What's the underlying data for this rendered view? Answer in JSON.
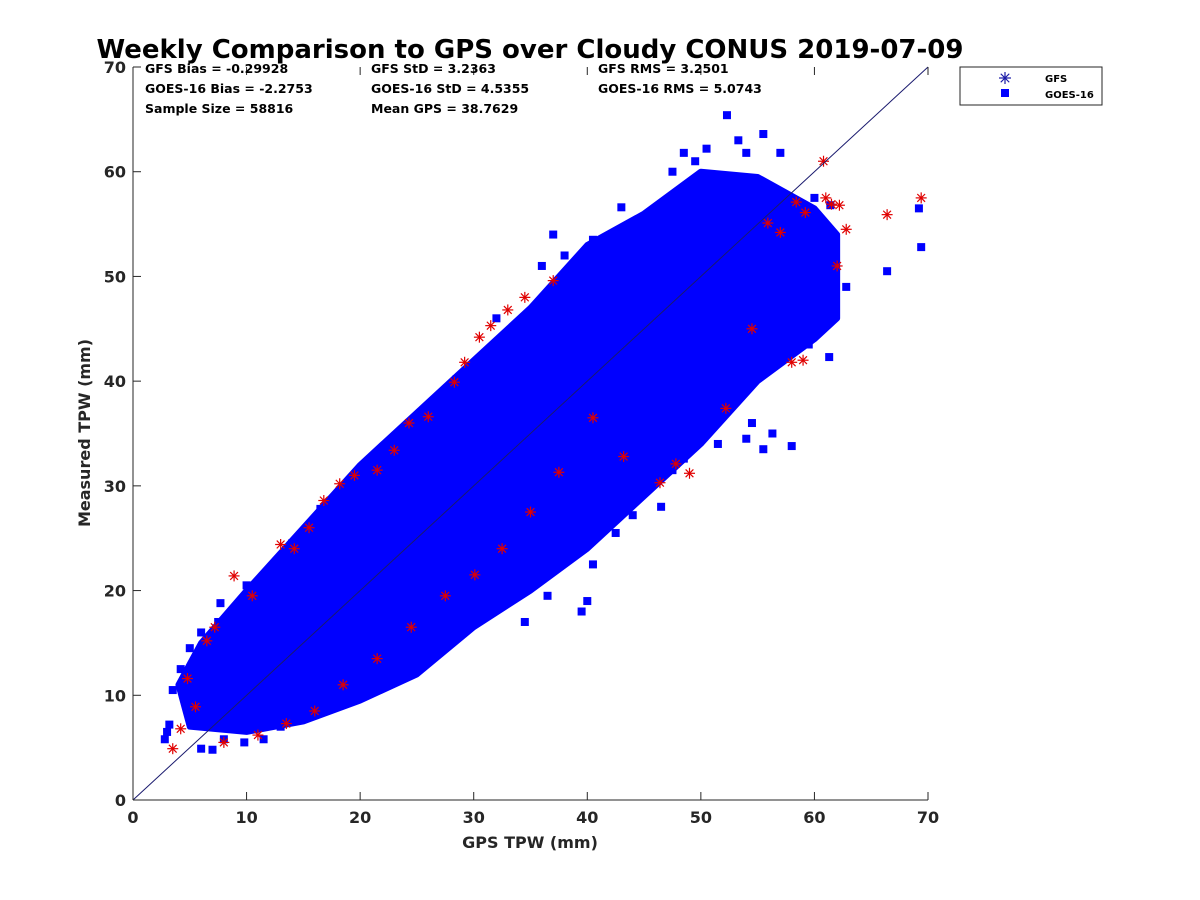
{
  "chart_data": {
    "type": "scatter",
    "title": "Weekly Comparison to GPS over Cloudy CONUS 2019-07-09",
    "xlabel": "GPS TPW (mm)",
    "ylabel": "Measured TPW (mm)",
    "xlim": [
      0,
      70
    ],
    "ylim": [
      0,
      70
    ],
    "xticks": [
      "0",
      "10",
      "20",
      "30",
      "40",
      "50",
      "60",
      "70"
    ],
    "yticks": [
      "0",
      "10",
      "20",
      "30",
      "40",
      "50",
      "60",
      "70"
    ],
    "grid": false,
    "legend_position": "outside-top-right",
    "reference_line": "1:1",
    "stats": {
      "gfs_bias": "GFS Bias = -0.29928",
      "gfs_std": "GFS StD = 3.2363",
      "gfs_rms": "GFS RMS = 3.2501",
      "goes_bias": "GOES-16 Bias = -2.2753",
      "goes_std": "GOES-16 StD = 4.5355",
      "goes_rms": "GOES-16 RMS = 5.0743",
      "sample_size": "Sample Size = 58816",
      "mean_gps": "Mean GPS = 38.7629"
    },
    "series": [
      {
        "name": "GFS",
        "marker": "asterisk",
        "color": "#e00000",
        "legend_color": "#1a1aa6",
        "points": [
          [
            3.5,
            4.9
          ],
          [
            4.2,
            6.8
          ],
          [
            4.8,
            11.6
          ],
          [
            5.5,
            8.9
          ],
          [
            6.5,
            15.2
          ],
          [
            7.2,
            16.5
          ],
          [
            8.9,
            21.4
          ],
          [
            10.5,
            19.5
          ],
          [
            13.0,
            24.4
          ],
          [
            14.2,
            24.0
          ],
          [
            15.5,
            26.0
          ],
          [
            16.8,
            28.6
          ],
          [
            18.2,
            30.2
          ],
          [
            19.5,
            31.0
          ],
          [
            21.5,
            31.5
          ],
          [
            23.0,
            33.4
          ],
          [
            24.3,
            36.0
          ],
          [
            26.0,
            36.6
          ],
          [
            28.3,
            39.9
          ],
          [
            29.2,
            41.8
          ],
          [
            30.5,
            44.2
          ],
          [
            31.5,
            45.3
          ],
          [
            33.0,
            46.8
          ],
          [
            34.5,
            48.0
          ],
          [
            37.0,
            49.6
          ],
          [
            55.9,
            55.1
          ],
          [
            57.0,
            54.2
          ],
          [
            58.4,
            57.1
          ],
          [
            59.2,
            56.1
          ],
          [
            60.8,
            61.0
          ],
          [
            61.0,
            57.5
          ],
          [
            61.5,
            56.9
          ],
          [
            62.2,
            56.8
          ],
          [
            62.0,
            51.0
          ],
          [
            62.8,
            54.5
          ],
          [
            66.4,
            55.9
          ],
          [
            69.4,
            57.5
          ],
          [
            59.0,
            42.0
          ],
          [
            58.0,
            41.8
          ],
          [
            54.5,
            45.0
          ],
          [
            52.2,
            37.4
          ],
          [
            49.0,
            31.2
          ],
          [
            47.8,
            32.1
          ],
          [
            46.4,
            30.3
          ],
          [
            43.2,
            32.8
          ],
          [
            40.5,
            36.5
          ],
          [
            37.5,
            31.3
          ],
          [
            35.0,
            27.5
          ],
          [
            32.5,
            24.0
          ],
          [
            30.1,
            21.5
          ],
          [
            27.5,
            19.5
          ],
          [
            24.5,
            16.5
          ],
          [
            21.5,
            13.5
          ],
          [
            18.5,
            11.0
          ],
          [
            16.0,
            8.5
          ],
          [
            13.5,
            7.3
          ],
          [
            11.0,
            6.2
          ],
          [
            8.0,
            5.5
          ]
        ]
      },
      {
        "name": "GOES-16",
        "marker": "square",
        "color": "#0000ff",
        "bands": [
          {
            "lower": [
              [
                5,
                7
              ],
              [
                10,
                6.5
              ],
              [
                15,
                7.5
              ],
              [
                20,
                9.5
              ],
              [
                25,
                12
              ],
              [
                30,
                16.5
              ],
              [
                35,
                20
              ],
              [
                40,
                24
              ],
              [
                45,
                29
              ],
              [
                50,
                34
              ],
              [
                55,
                40
              ],
              [
                60,
                44
              ],
              [
                62,
                46
              ]
            ],
            "upper": [
              [
                62,
                54
              ],
              [
                60,
                56.5
              ],
              [
                55,
                59.5
              ],
              [
                50,
                60
              ],
              [
                45,
                56
              ],
              [
                40,
                53
              ],
              [
                35,
                47
              ],
              [
                30,
                42
              ],
              [
                25,
                37
              ],
              [
                20,
                32
              ],
              [
                15,
                26
              ],
              [
                10,
                20
              ],
              [
                6,
                15
              ],
              [
                4,
                11
              ]
            ]
          }
        ],
        "points": [
          [
            2.8,
            5.8
          ],
          [
            3.0,
            6.5
          ],
          [
            3.2,
            7.2
          ],
          [
            3.5,
            10.5
          ],
          [
            4.2,
            12.5
          ],
          [
            5.0,
            14.5
          ],
          [
            6.0,
            16.0
          ],
          [
            7.5,
            17.0
          ],
          [
            7.7,
            18.8
          ],
          [
            10.0,
            20.5
          ],
          [
            12.0,
            20.0
          ],
          [
            14.0,
            24.5
          ],
          [
            16.5,
            27.8
          ],
          [
            18.5,
            29.0
          ],
          [
            20.5,
            31.2
          ],
          [
            22.5,
            34.0
          ],
          [
            25.2,
            35.6
          ],
          [
            27.5,
            37.5
          ],
          [
            28.5,
            40.2
          ],
          [
            30.0,
            40.8
          ],
          [
            32.0,
            46.0
          ],
          [
            35.5,
            46.8
          ],
          [
            36.0,
            51.0
          ],
          [
            37.0,
            54.0
          ],
          [
            38.0,
            52.0
          ],
          [
            40.5,
            53.5
          ],
          [
            43.0,
            56.6
          ],
          [
            47.5,
            60.0
          ],
          [
            48.5,
            61.8
          ],
          [
            49.5,
            61.0
          ],
          [
            50.5,
            62.2
          ],
          [
            52.3,
            65.4
          ],
          [
            53.3,
            63.0
          ],
          [
            55.5,
            63.6
          ],
          [
            54.0,
            61.8
          ],
          [
            57.0,
            61.8
          ],
          [
            60.0,
            57.5
          ],
          [
            61.4,
            56.8
          ],
          [
            62.8,
            49.0
          ],
          [
            66.4,
            50.5
          ],
          [
            69.2,
            56.5
          ],
          [
            69.4,
            52.8
          ],
          [
            61.3,
            42.3
          ],
          [
            60.5,
            46.0
          ],
          [
            60.0,
            44.5
          ],
          [
            59.5,
            43.5
          ],
          [
            58.0,
            33.8
          ],
          [
            56.3,
            35.0
          ],
          [
            55.5,
            33.5
          ],
          [
            54.0,
            34.5
          ],
          [
            54.5,
            36.0
          ],
          [
            51.5,
            34.0
          ],
          [
            50.0,
            35.0
          ],
          [
            48.5,
            32.6
          ],
          [
            47.5,
            31.5
          ],
          [
            46.5,
            28.0
          ],
          [
            44.0,
            27.2
          ],
          [
            42.5,
            25.5
          ],
          [
            40.5,
            22.5
          ],
          [
            40.0,
            19.0
          ],
          [
            39.5,
            18.0
          ],
          [
            36.5,
            19.5
          ],
          [
            34.5,
            17.0
          ],
          [
            32.5,
            20.5
          ],
          [
            31.5,
            18.8
          ],
          [
            30.0,
            21.5
          ],
          [
            27.5,
            21.0
          ],
          [
            25.0,
            18.6
          ],
          [
            22.5,
            14.0
          ],
          [
            20.5,
            13.2
          ],
          [
            18.0,
            10.3
          ],
          [
            16.5,
            9.6
          ],
          [
            15.0,
            8.5
          ],
          [
            13.0,
            7.0
          ],
          [
            11.5,
            5.8
          ],
          [
            9.8,
            5.5
          ],
          [
            8.0,
            5.8
          ],
          [
            7.0,
            4.8
          ],
          [
            6.0,
            4.9
          ]
        ]
      }
    ]
  },
  "legend": {
    "gfs_label": "GFS",
    "goes_label": "GOES-16"
  },
  "colors": {
    "gfs": "#e00000",
    "goes": "#0000ff",
    "legend_gfs": "#1a1aa6",
    "ref_line": "#1a1a6e"
  }
}
